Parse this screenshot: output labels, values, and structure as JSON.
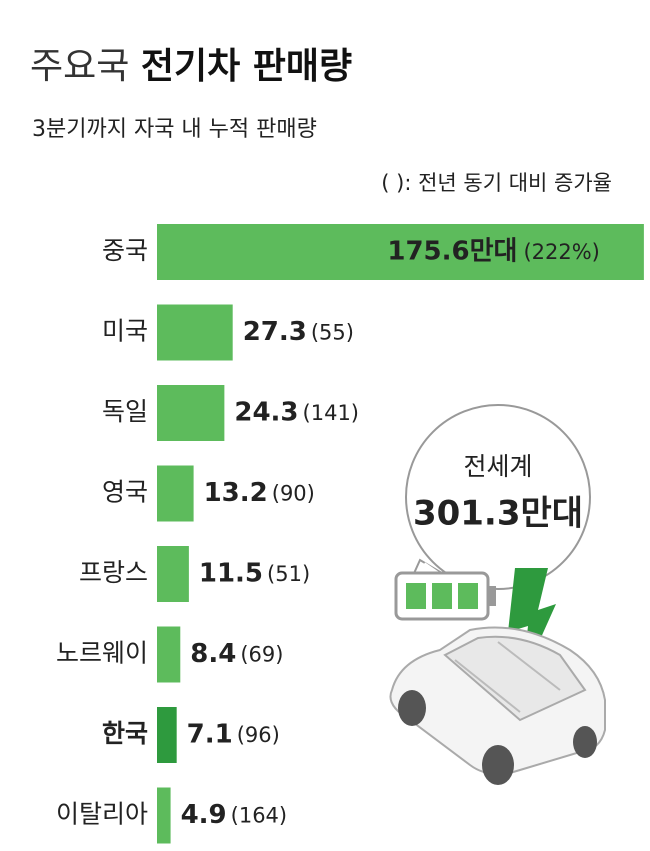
{
  "chart_data": {
    "type": "bar",
    "title": [
      "주요국",
      "전기차 판매량"
    ],
    "subtitle": "3분기까지 자국 내 누적 판매량",
    "note": "( ): 전년 동기 대비 증가율",
    "categories": [
      "중국",
      "미국",
      "독일",
      "영국",
      "프랑스",
      "노르웨이",
      "한국",
      "이탈리아"
    ],
    "values": [
      175.6,
      27.3,
      24.3,
      13.2,
      11.5,
      8.4,
      7.1,
      4.9
    ],
    "value_labels": [
      "175.6만대",
      "27.3",
      "24.3",
      "13.2",
      "11.5",
      "8.4",
      "7.1",
      "4.9"
    ],
    "growth_labels": [
      "(222%)",
      "(55)",
      "(141)",
      "(90)",
      "(51)",
      "(69)",
      "(96)",
      "(164)"
    ],
    "color": "#5dbb5c",
    "highlight_index": 6,
    "highlight_color": "#2e9a3e",
    "xlim": [
      0,
      176
    ],
    "annotation": [
      "전세계",
      "301.3만대"
    ]
  }
}
